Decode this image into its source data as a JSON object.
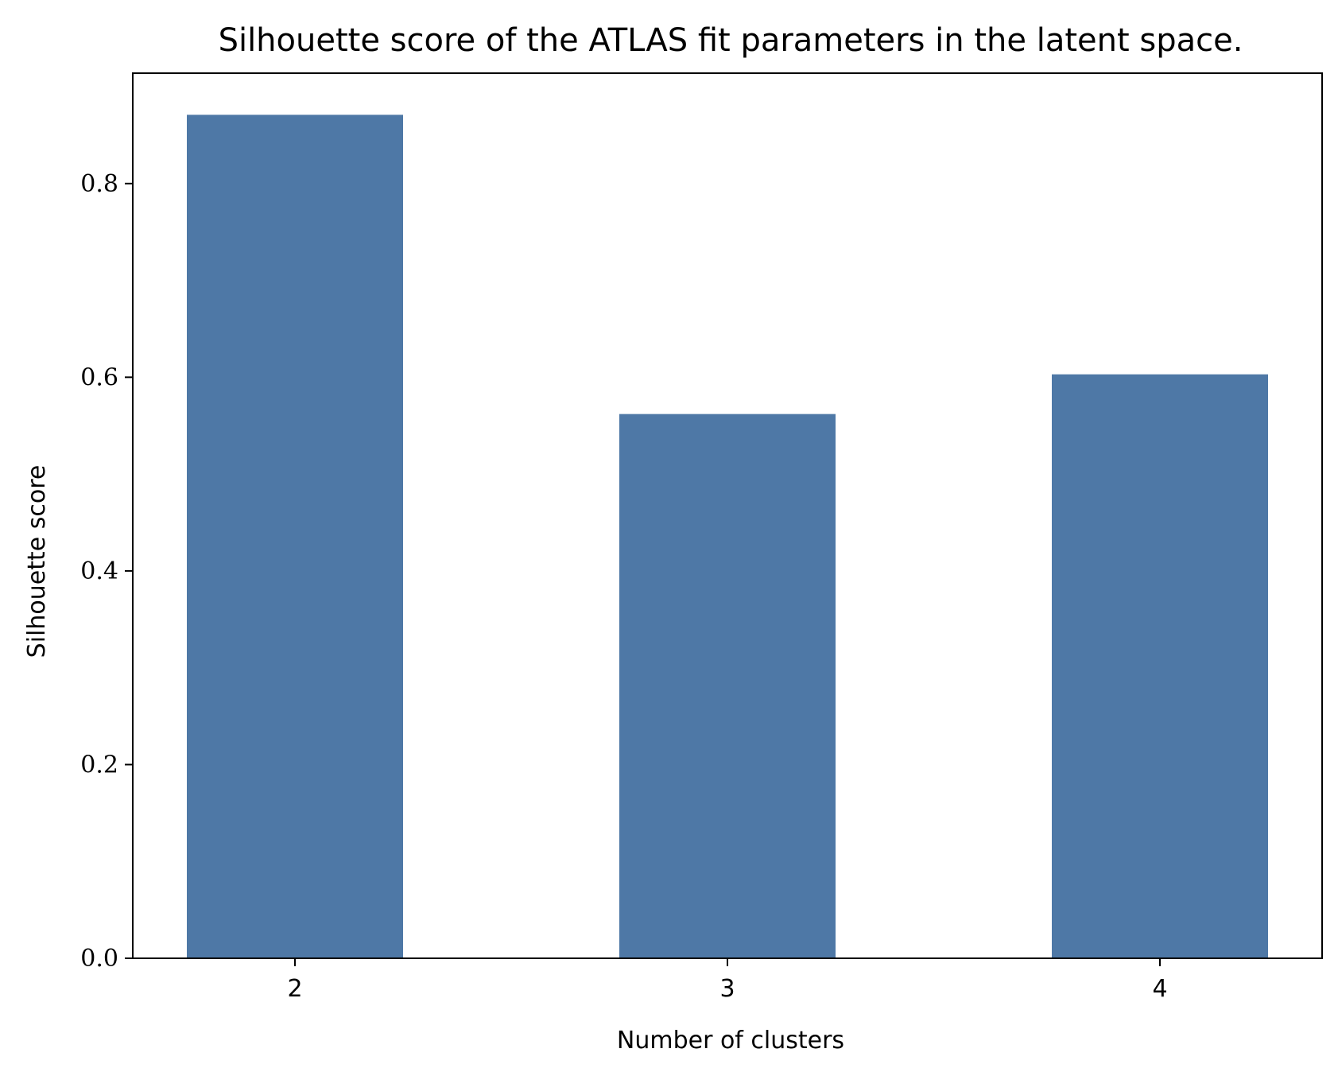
{
  "chart_data": {
    "type": "bar",
    "title": "Silhouette score of the ATLAS fit parameters in the latent space.",
    "xlabel": "Number of clusters",
    "ylabel": "Silhouette score",
    "categories": [
      "2",
      "3",
      "4"
    ],
    "values": [
      0.871,
      0.562,
      0.603
    ],
    "ylim": [
      0,
      0.914
    ],
    "yticks": [
      0.0,
      0.2,
      0.4,
      0.6,
      0.8
    ],
    "ytick_labels": [
      "0.0",
      "0.2",
      "0.4",
      "0.6",
      "0.8"
    ],
    "grid": false,
    "legend": "none",
    "bar_color": "#4e78a6"
  }
}
